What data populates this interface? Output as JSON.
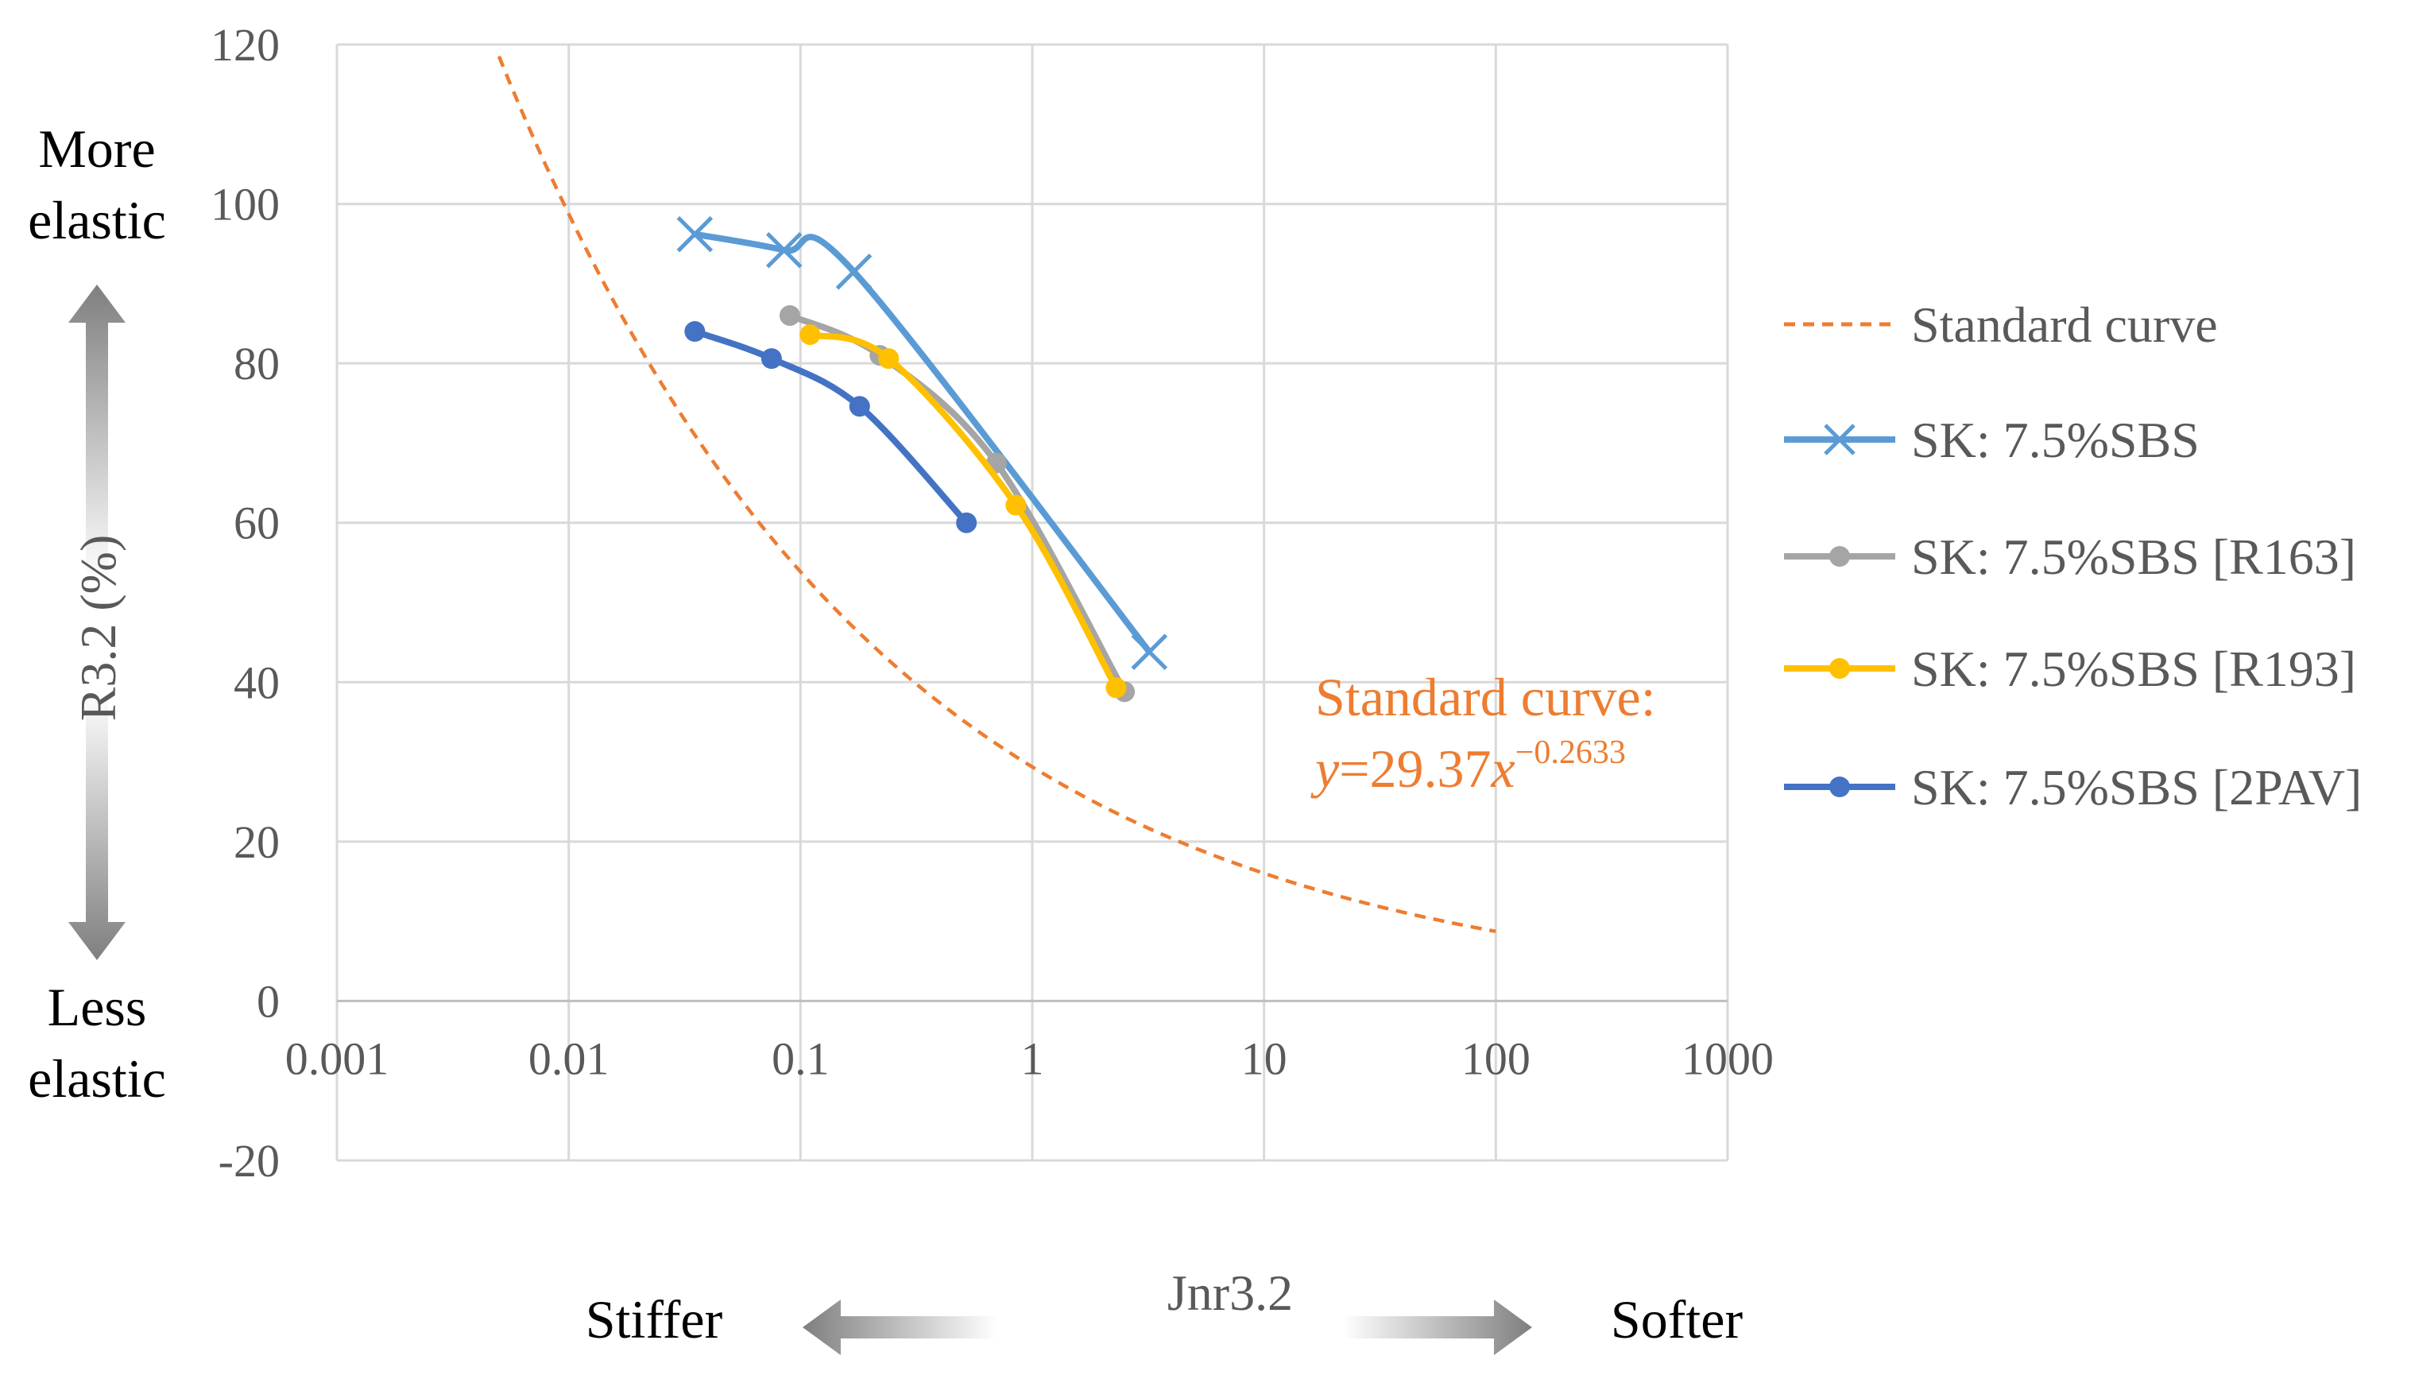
{
  "chart_data": {
    "type": "scatter",
    "x_scale": "log",
    "xlim": [
      0.001,
      1000
    ],
    "ylim": [
      -20,
      120
    ],
    "x_ticks": [
      0.001,
      0.01,
      0.1,
      1,
      10,
      100,
      1000
    ],
    "x_tick_labels": [
      "0.001",
      "0.01",
      "0.1",
      "1",
      "10",
      "100",
      "1000"
    ],
    "y_ticks": [
      -20,
      0,
      20,
      40,
      60,
      80,
      100,
      120
    ],
    "y_tick_labels": [
      "-20",
      "0",
      "20",
      "40",
      "60",
      "80",
      "100",
      "120"
    ],
    "xlabel": "Jnr3.2",
    "ylabel": "R3.2 (%)",
    "grid": true,
    "legend_position": "right",
    "annotations": {
      "more_elastic_line1": "More",
      "more_elastic_line2": "elastic",
      "less_elastic_line1": "Less",
      "less_elastic_line2": "elastic",
      "stiffer": "Stiffer",
      "softer": "Softer",
      "equation_title": "Standard curve:",
      "equation_y": "y",
      "equation_eq": "=29.37",
      "equation_x": "x",
      "equation_exp": "−0.2633"
    },
    "standard_curve": {
      "name": "Standard curve",
      "a": 29.37,
      "b": -0.2633,
      "x_range": [
        0.005,
        100
      ],
      "color": "#ED7D31"
    },
    "series": [
      {
        "name": "SK: 7.5%SBS",
        "marker": "x",
        "color": "#5B9BD5",
        "x": [
          0.035,
          0.085,
          0.17,
          3.2
        ],
        "y": [
          96.2,
          94.2,
          91.5,
          43.8
        ]
      },
      {
        "name": "SK: 7.5%SBS [R163]",
        "marker": "circle",
        "color": "#A5A5A5",
        "x": [
          0.09,
          0.22,
          0.7,
          2.5
        ],
        "y": [
          86.0,
          81.0,
          67.5,
          38.8
        ]
      },
      {
        "name": "SK: 7.5%SBS [R193]",
        "marker": "circle",
        "color": "#FFC000",
        "x": [
          0.11,
          0.24,
          0.85,
          2.3
        ],
        "y": [
          83.6,
          80.6,
          62.2,
          39.3
        ]
      },
      {
        "name": "SK: 7.5%SBS [2PAV]",
        "marker": "circle",
        "color": "#4472C4",
        "x": [
          0.035,
          0.075,
          0.18,
          0.52
        ],
        "y": [
          84.0,
          80.6,
          74.6,
          60.0
        ]
      }
    ]
  }
}
